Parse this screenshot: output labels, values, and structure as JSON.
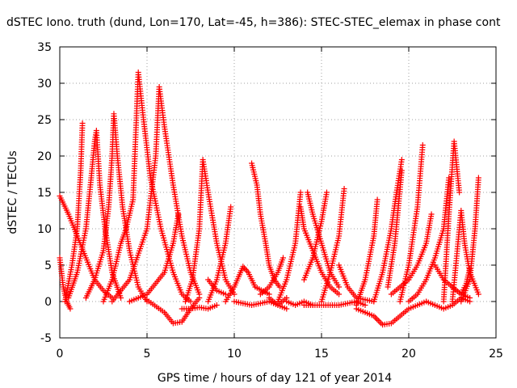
{
  "chart_data": {
    "type": "scatter",
    "title": "dSTEC Iono. truth (dund, Lon=170, Lat=-45, h=386): STEC-STEC_elemax in phase cont",
    "xlabel": "GPS time / hours of day 121 of year 2014",
    "ylabel": "dSTEC  / TECUs",
    "xlim": [
      0,
      25
    ],
    "ylim": [
      -5,
      35
    ],
    "xticks": [
      0,
      5,
      10,
      15,
      20,
      25
    ],
    "yticks": [
      -5,
      0,
      5,
      10,
      15,
      20,
      25,
      30,
      35
    ],
    "grid": true,
    "marker": "+",
    "color": "#ff0000",
    "series": [
      {
        "points": [
          [
            0,
            14.5
          ],
          [
            0.5,
            12
          ],
          [
            1,
            9
          ],
          [
            1.5,
            6
          ],
          [
            2,
            3
          ],
          [
            2.5,
            1.5
          ],
          [
            3,
            0.5
          ]
        ]
      },
      {
        "points": [
          [
            0,
            6
          ],
          [
            0.2,
            2
          ],
          [
            0.4,
            0
          ],
          [
            0.6,
            -1
          ]
        ]
      },
      {
        "points": [
          [
            0.3,
            0
          ],
          [
            0.7,
            5
          ],
          [
            1,
            10
          ],
          [
            1.2,
            18
          ],
          [
            1.3,
            24.5
          ]
        ]
      },
      {
        "points": [
          [
            0.5,
            0.5
          ],
          [
            1,
            4
          ],
          [
            1.5,
            10
          ],
          [
            1.8,
            17
          ],
          [
            2,
            22
          ],
          [
            2.1,
            23.5
          ],
          [
            2.3,
            16
          ],
          [
            2.6,
            10
          ],
          [
            3,
            4
          ],
          [
            3.5,
            0.5
          ]
        ]
      },
      {
        "points": [
          [
            1.5,
            0.5
          ],
          [
            2,
            3
          ],
          [
            2.5,
            7
          ],
          [
            2.8,
            13
          ],
          [
            3,
            20
          ],
          [
            3.1,
            25.8
          ],
          [
            3.3,
            20
          ],
          [
            3.6,
            13
          ],
          [
            4,
            7
          ],
          [
            4.5,
            2
          ],
          [
            5,
            0
          ]
        ]
      },
      {
        "points": [
          [
            2.5,
            0
          ],
          [
            3,
            3
          ],
          [
            3.5,
            8
          ],
          [
            3.8,
            10
          ],
          [
            4.2,
            14
          ],
          [
            4.5,
            31.5
          ],
          [
            4.8,
            25
          ],
          [
            5.2,
            17
          ],
          [
            5.8,
            10
          ],
          [
            6.5,
            4
          ],
          [
            7,
            1
          ],
          [
            7.5,
            0
          ]
        ]
      },
      {
        "points": [
          [
            3,
            0
          ],
          [
            4,
            3
          ],
          [
            5,
            10
          ],
          [
            5.5,
            20
          ],
          [
            5.7,
            29.5
          ],
          [
            6,
            24
          ],
          [
            6.5,
            16
          ],
          [
            7,
            9
          ],
          [
            7.5,
            4
          ],
          [
            8,
            1
          ]
        ]
      },
      {
        "points": [
          [
            4,
            0
          ],
          [
            5,
            1
          ],
          [
            6,
            4
          ],
          [
            6.5,
            8
          ],
          [
            6.8,
            12
          ]
        ]
      },
      {
        "points": [
          [
            5,
            0.2
          ],
          [
            6,
            -1.5
          ],
          [
            6.5,
            -3
          ],
          [
            7,
            -2.8
          ],
          [
            7.5,
            -1
          ],
          [
            8,
            0.5
          ]
        ]
      },
      {
        "points": [
          [
            7,
            -1
          ],
          [
            7.5,
            -1
          ],
          [
            8,
            -0.8
          ],
          [
            8.5,
            -1
          ],
          [
            9,
            -0.5
          ]
        ]
      },
      {
        "points": [
          [
            7.2,
            0
          ],
          [
            7.6,
            3
          ],
          [
            8,
            10
          ],
          [
            8.2,
            19.5
          ],
          [
            8.5,
            15
          ],
          [
            9,
            8
          ],
          [
            9.5,
            3
          ],
          [
            10,
            1
          ]
        ]
      },
      {
        "points": [
          [
            8.5,
            0
          ],
          [
            9,
            3
          ],
          [
            9.5,
            8
          ],
          [
            9.8,
            13
          ]
        ]
      },
      {
        "points": [
          [
            8.5,
            3
          ],
          [
            9,
            1.5
          ],
          [
            9.5,
            1
          ]
        ]
      },
      {
        "points": [
          [
            9.5,
            0
          ],
          [
            10,
            2
          ],
          [
            10.5,
            4.8
          ],
          [
            10.8,
            4
          ],
          [
            11.2,
            2
          ],
          [
            12,
            1
          ]
        ]
      },
      {
        "points": [
          [
            10,
            0
          ],
          [
            11,
            -0.5
          ],
          [
            12,
            0
          ],
          [
            12.5,
            -0.5
          ],
          [
            13,
            0.5
          ]
        ]
      },
      {
        "points": [
          [
            11,
            19
          ],
          [
            11.3,
            16
          ],
          [
            11.5,
            12
          ],
          [
            11.8,
            8
          ],
          [
            12,
            5
          ],
          [
            12.3,
            3
          ],
          [
            12.6,
            2
          ]
        ]
      },
      {
        "points": [
          [
            11.5,
            1
          ],
          [
            12,
            2
          ],
          [
            12.5,
            4
          ],
          [
            12.8,
            6
          ]
        ]
      },
      {
        "points": [
          [
            12,
            0.5
          ],
          [
            12.5,
            -0.5
          ],
          [
            13,
            -1
          ]
        ]
      },
      {
        "points": [
          [
            12.5,
            0
          ],
          [
            13,
            3
          ],
          [
            13.5,
            8
          ],
          [
            13.8,
            15
          ]
        ]
      },
      {
        "points": [
          [
            13,
            0
          ],
          [
            13.5,
            -0.5
          ],
          [
            14,
            0
          ],
          [
            14.5,
            -0.5
          ]
        ]
      },
      {
        "points": [
          [
            13.8,
            13
          ],
          [
            14,
            10
          ],
          [
            14.5,
            7
          ],
          [
            15,
            4
          ],
          [
            15.5,
            2
          ],
          [
            16,
            1
          ]
        ]
      },
      {
        "points": [
          [
            14.2,
            15
          ],
          [
            14.5,
            12
          ],
          [
            15,
            8
          ],
          [
            15.5,
            4
          ],
          [
            16,
            2
          ]
        ]
      },
      {
        "points": [
          [
            14,
            3
          ],
          [
            14.5,
            6
          ],
          [
            15,
            11
          ],
          [
            15.3,
            15
          ]
        ]
      },
      {
        "points": [
          [
            14,
            -0.5
          ],
          [
            15,
            -0.5
          ],
          [
            16,
            -0.5
          ],
          [
            17,
            0
          ],
          [
            17.5,
            -0.5
          ]
        ]
      },
      {
        "points": [
          [
            15,
            0
          ],
          [
            15.5,
            4
          ],
          [
            16,
            9
          ],
          [
            16.3,
            15.5
          ]
        ]
      },
      {
        "points": [
          [
            16,
            5
          ],
          [
            16.5,
            2
          ],
          [
            17,
            0.5
          ],
          [
            18,
            0
          ]
        ]
      },
      {
        "points": [
          [
            17,
            -1
          ],
          [
            18,
            -2
          ],
          [
            18.5,
            -3.2
          ],
          [
            19,
            -3
          ],
          [
            19.5,
            -2
          ],
          [
            20,
            -1
          ],
          [
            21,
            0
          ]
        ]
      },
      {
        "points": [
          [
            17,
            -0.5
          ],
          [
            17.5,
            3
          ],
          [
            18,
            9
          ],
          [
            18.2,
            14
          ]
        ]
      },
      {
        "points": [
          [
            18,
            0
          ],
          [
            18.5,
            4
          ],
          [
            19,
            10
          ],
          [
            19.3,
            15
          ],
          [
            19.6,
            19.5
          ]
        ]
      },
      {
        "points": [
          [
            18.8,
            2
          ],
          [
            19.2,
            8
          ],
          [
            19.6,
            18
          ]
        ]
      },
      {
        "points": [
          [
            19,
            1
          ],
          [
            19.5,
            2
          ],
          [
            20,
            3
          ],
          [
            20.5,
            5
          ],
          [
            21,
            8
          ],
          [
            21.3,
            12
          ]
        ]
      },
      {
        "points": [
          [
            19.5,
            0
          ],
          [
            20,
            5
          ],
          [
            20.5,
            13
          ],
          [
            20.8,
            21.5
          ]
        ]
      },
      {
        "points": [
          [
            20,
            0
          ],
          [
            20.5,
            1
          ],
          [
            21,
            3
          ],
          [
            21.5,
            6
          ],
          [
            22,
            10
          ],
          [
            22.3,
            17
          ]
        ]
      },
      {
        "points": [
          [
            21,
            0
          ],
          [
            21.5,
            -0.5
          ],
          [
            22,
            -1
          ],
          [
            22.5,
            -0.5
          ],
          [
            23,
            0.5
          ],
          [
            23.5,
            0
          ]
        ]
      },
      {
        "points": [
          [
            21.5,
            5
          ],
          [
            22,
            3
          ],
          [
            22.5,
            2
          ],
          [
            23,
            1
          ],
          [
            23.5,
            0.5
          ]
        ]
      },
      {
        "points": [
          [
            22,
            0
          ],
          [
            22.3,
            12
          ],
          [
            22.6,
            22
          ],
          [
            22.9,
            15
          ]
        ]
      },
      {
        "points": [
          [
            22.5,
            2
          ],
          [
            23,
            1
          ],
          [
            23.3,
            2.5
          ],
          [
            23.5,
            4.5
          ]
        ]
      },
      {
        "points": [
          [
            22.5,
            0
          ],
          [
            23,
            12.5
          ],
          [
            23.2,
            8
          ],
          [
            23.5,
            4
          ],
          [
            24,
            1
          ]
        ]
      },
      {
        "points": [
          [
            23,
            0
          ],
          [
            23.5,
            3
          ],
          [
            23.8,
            10
          ],
          [
            24,
            17
          ]
        ]
      }
    ]
  }
}
